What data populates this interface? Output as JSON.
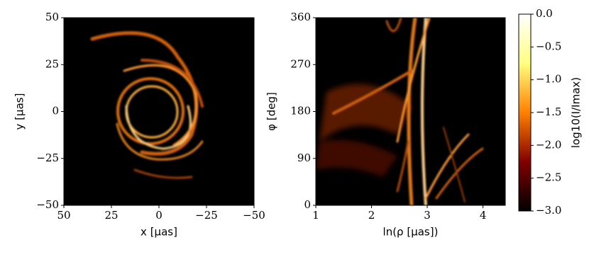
{
  "chart_data": [
    {
      "type": "heatmap",
      "xlabel": "x [μas]",
      "ylabel": "y [μas]",
      "xlim": [
        50,
        -50
      ],
      "xticks": [
        50,
        25,
        0,
        {
          "value": -25,
          "label": "−25"
        },
        {
          "value": -50,
          "label": "−50"
        }
      ],
      "ylim": [
        -50,
        50
      ],
      "yticks": [
        {
          "value": -50,
          "label": "−50"
        },
        {
          "value": -25,
          "label": "−25"
        },
        0,
        25,
        50
      ]
    },
    {
      "type": "heatmap",
      "xlabel": "ln(ρ [μas])",
      "ylabel": "φ [deg]",
      "xlim": [
        1,
        4.4
      ],
      "xticks": [
        1,
        2,
        3,
        4
      ],
      "ylim": [
        0,
        360
      ],
      "yticks": [
        0,
        90,
        180,
        270,
        360
      ]
    },
    {
      "type": "colorbar",
      "ylabel": "log10(I/Imax)",
      "ylim": [
        -3,
        0
      ],
      "yticks": [
        {
          "value": -3,
          "label": "−3.0"
        },
        {
          "value": -2.5,
          "label": "−2.5"
        },
        {
          "value": -2,
          "label": "−2.0"
        },
        {
          "value": -1.5,
          "label": "−1.5"
        },
        {
          "value": -1,
          "label": "−1.0"
        },
        {
          "value": -0.5,
          "label": "−0.5"
        },
        {
          "value": 0,
          "label": "0.0"
        }
      ],
      "colormap": [
        "#000000",
        "#800000",
        "#ff8000",
        "#ffff80",
        "#ffffff"
      ]
    }
  ]
}
